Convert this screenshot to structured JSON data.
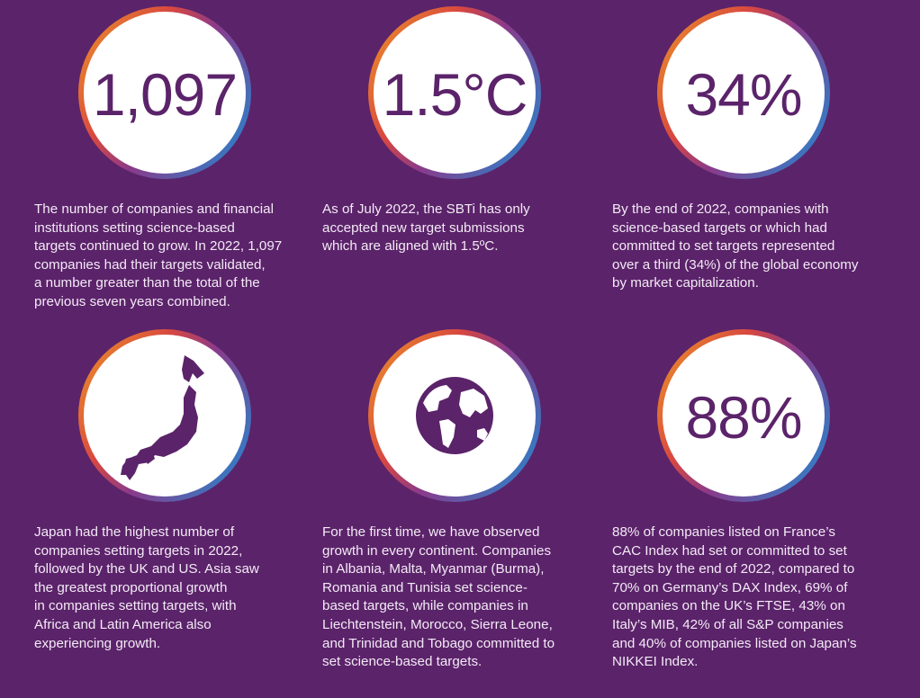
{
  "cards": [
    {
      "stat": "1,097",
      "lines": [
        "The number of companies and financial",
        "institutions setting science-based",
        "targets continued to grow. In 2022, 1,097",
        "companies had their targets validated,",
        "a number greater than the total of the",
        "previous seven years combined."
      ]
    },
    {
      "stat": "1.5°C",
      "lines": [
        "As of July 2022, the SBTi has only",
        "accepted new target submissions",
        "which are aligned with 1.5ºC."
      ]
    },
    {
      "stat": "34%",
      "lines": [
        "By the end of 2022, companies with",
        "science-based targets or which had",
        "committed to set targets represented",
        "over a third (34%) of the global economy",
        "by market capitalization."
      ]
    },
    {
      "lines": [
        "Japan had the highest number of",
        "companies setting targets in 2022,",
        "followed by the UK and US. Asia saw",
        "the greatest proportional growth",
        "in companies setting targets, with",
        "Africa and Latin America also",
        "experiencing growth."
      ]
    },
    {
      "lines": [
        "For the first time, we have observed",
        "growth in every continent. Companies",
        "in Albania, Malta, Myanmar (Burma),",
        "Romania and Tunisia set science-",
        "based targets, while companies in",
        "Liechtenstein, Morocco, Sierra Leone,",
        "and Trinidad and Tobago committed to",
        "set science-based targets."
      ]
    },
    {
      "stat": "88%",
      "lines": [
        "88% of companies listed on France’s",
        "CAC Index had set or committed to set",
        "targets by the end of 2022, compared to",
        "70% on Germany’s DAX Index, 69% of",
        "companies on the UK’s FTSE, 43% on",
        "Italy’s MIB, 42% of all S&P companies",
        "and 40% of companies listed on Japan’s",
        "NIKKEI Index."
      ]
    }
  ]
}
